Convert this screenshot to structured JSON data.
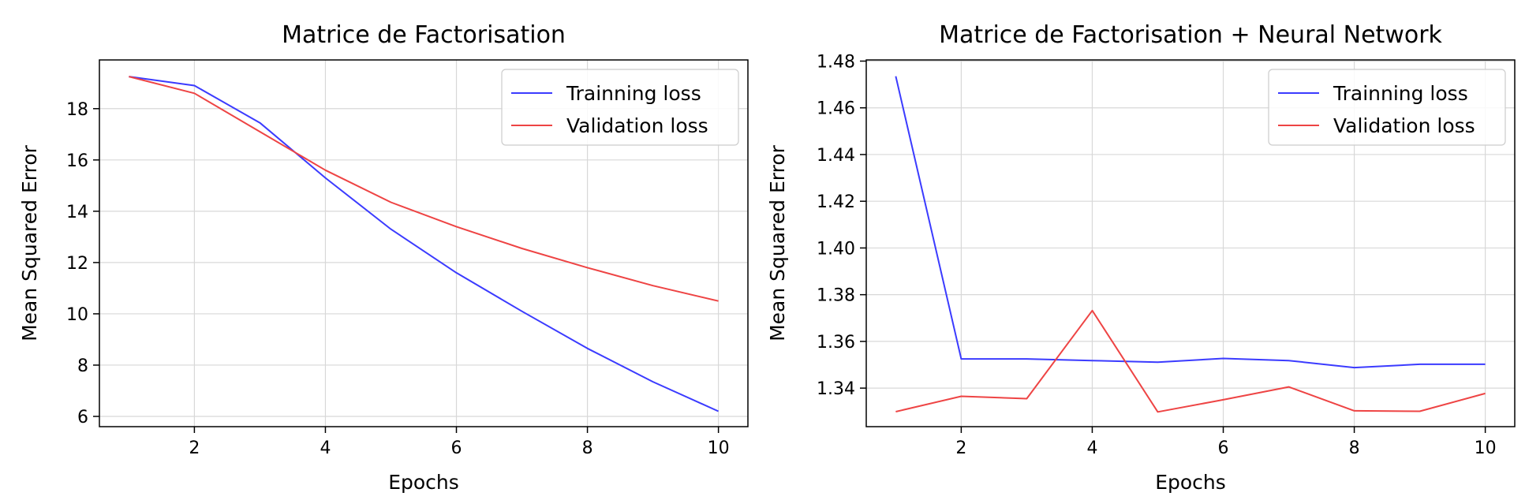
{
  "chart_data": [
    {
      "type": "line",
      "title": "Matrice de Factorisation",
      "xlabel": "Epochs",
      "ylabel": "Mean Squared Error",
      "xlim": [
        0.55,
        10.45
      ],
      "ylim": [
        5.6,
        19.9
      ],
      "xticks": [
        2,
        4,
        6,
        8,
        10
      ],
      "yticks": [
        6,
        8,
        10,
        12,
        14,
        16,
        18
      ],
      "tick_decimals": 0,
      "grid": true,
      "legend_position": "top-right",
      "x": [
        1,
        2,
        3,
        4,
        5,
        6,
        7,
        8,
        9,
        10
      ],
      "series": [
        {
          "name": "Trainning loss",
          "color": "#3b3bff",
          "values": [
            19.25,
            18.9,
            17.45,
            15.3,
            13.3,
            11.6,
            10.1,
            8.65,
            7.35,
            6.2
          ]
        },
        {
          "name": "Validation loss",
          "color": "#ee4444",
          "values": [
            19.25,
            18.6,
            17.1,
            15.6,
            14.35,
            13.4,
            12.55,
            11.8,
            11.1,
            10.5
          ]
        }
      ]
    },
    {
      "type": "line",
      "title": "Matrice de Factorisation + Neural Network",
      "xlabel": "Epochs",
      "ylabel": "Mean Squared Error",
      "xlim": [
        0.55,
        10.45
      ],
      "ylim": [
        1.3235,
        1.4805
      ],
      "xticks": [
        2,
        4,
        6,
        8,
        10
      ],
      "yticks": [
        1.34,
        1.36,
        1.38,
        1.4,
        1.42,
        1.44,
        1.46,
        1.48
      ],
      "tick_decimals": 2,
      "grid": true,
      "legend_position": "top-right",
      "x": [
        1,
        2,
        3,
        4,
        5,
        6,
        7,
        8,
        9,
        10
      ],
      "series": [
        {
          "name": "Trainning loss",
          "color": "#3b3bff",
          "values": [
            1.4735,
            1.3525,
            1.3525,
            1.3518,
            1.3511,
            1.3527,
            1.3518,
            1.3488,
            1.3502,
            1.3502
          ]
        },
        {
          "name": "Validation loss",
          "color": "#ee4444",
          "values": [
            1.3299,
            1.3365,
            1.3355,
            1.3732,
            1.3298,
            1.335,
            1.3405,
            1.3303,
            1.3301,
            1.3377
          ]
        }
      ]
    }
  ]
}
